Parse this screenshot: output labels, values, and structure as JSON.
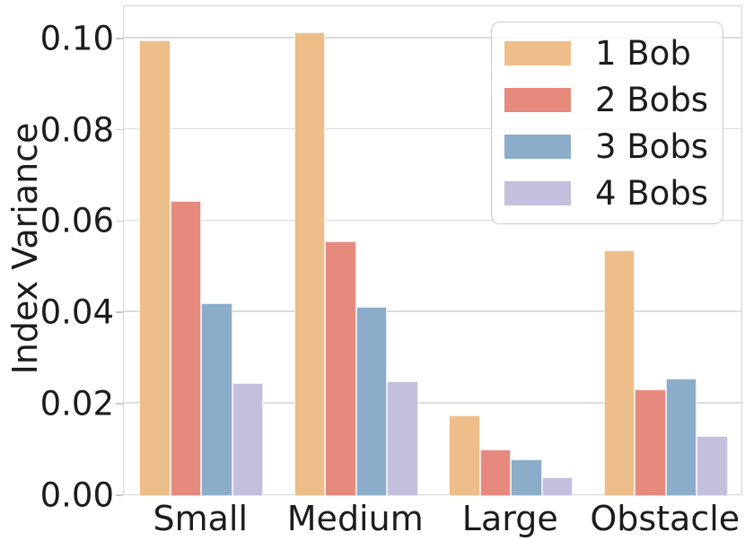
{
  "chart_data": {
    "type": "bar",
    "title": "",
    "xlabel": "",
    "ylabel": "Index Variance",
    "categories": [
      "Small",
      "Medium",
      "Large",
      "Obstacle"
    ],
    "series": [
      {
        "name": "1 Bob",
        "color": "#edbe8a",
        "values": [
          0.0998,
          0.1016,
          0.0176,
          0.0538
        ]
      },
      {
        "name": "2 Bobs",
        "color": "#e68a7e",
        "values": [
          0.0645,
          0.0557,
          0.0103,
          0.0234
        ]
      },
      {
        "name": "3 Bobs",
        "color": "#8badc9",
        "values": [
          0.0422,
          0.0415,
          0.0081,
          0.0257
        ]
      },
      {
        "name": "4 Bobs",
        "color": "#c3bfdc",
        "values": [
          0.0247,
          0.0252,
          0.0042,
          0.0131
        ]
      }
    ],
    "yticks": [
      "0.00",
      "0.02",
      "0.04",
      "0.06",
      "0.08",
      "0.10"
    ],
    "ytick_values": [
      0.0,
      0.02,
      0.04,
      0.06,
      0.08,
      0.1
    ],
    "ylim": [
      0,
      0.1072
    ],
    "grid": "horizontal",
    "grid_color": "#dcdcdc",
    "legend_position": "upper-right",
    "text_color": "#1c1c1c",
    "background": "#ffffff"
  }
}
